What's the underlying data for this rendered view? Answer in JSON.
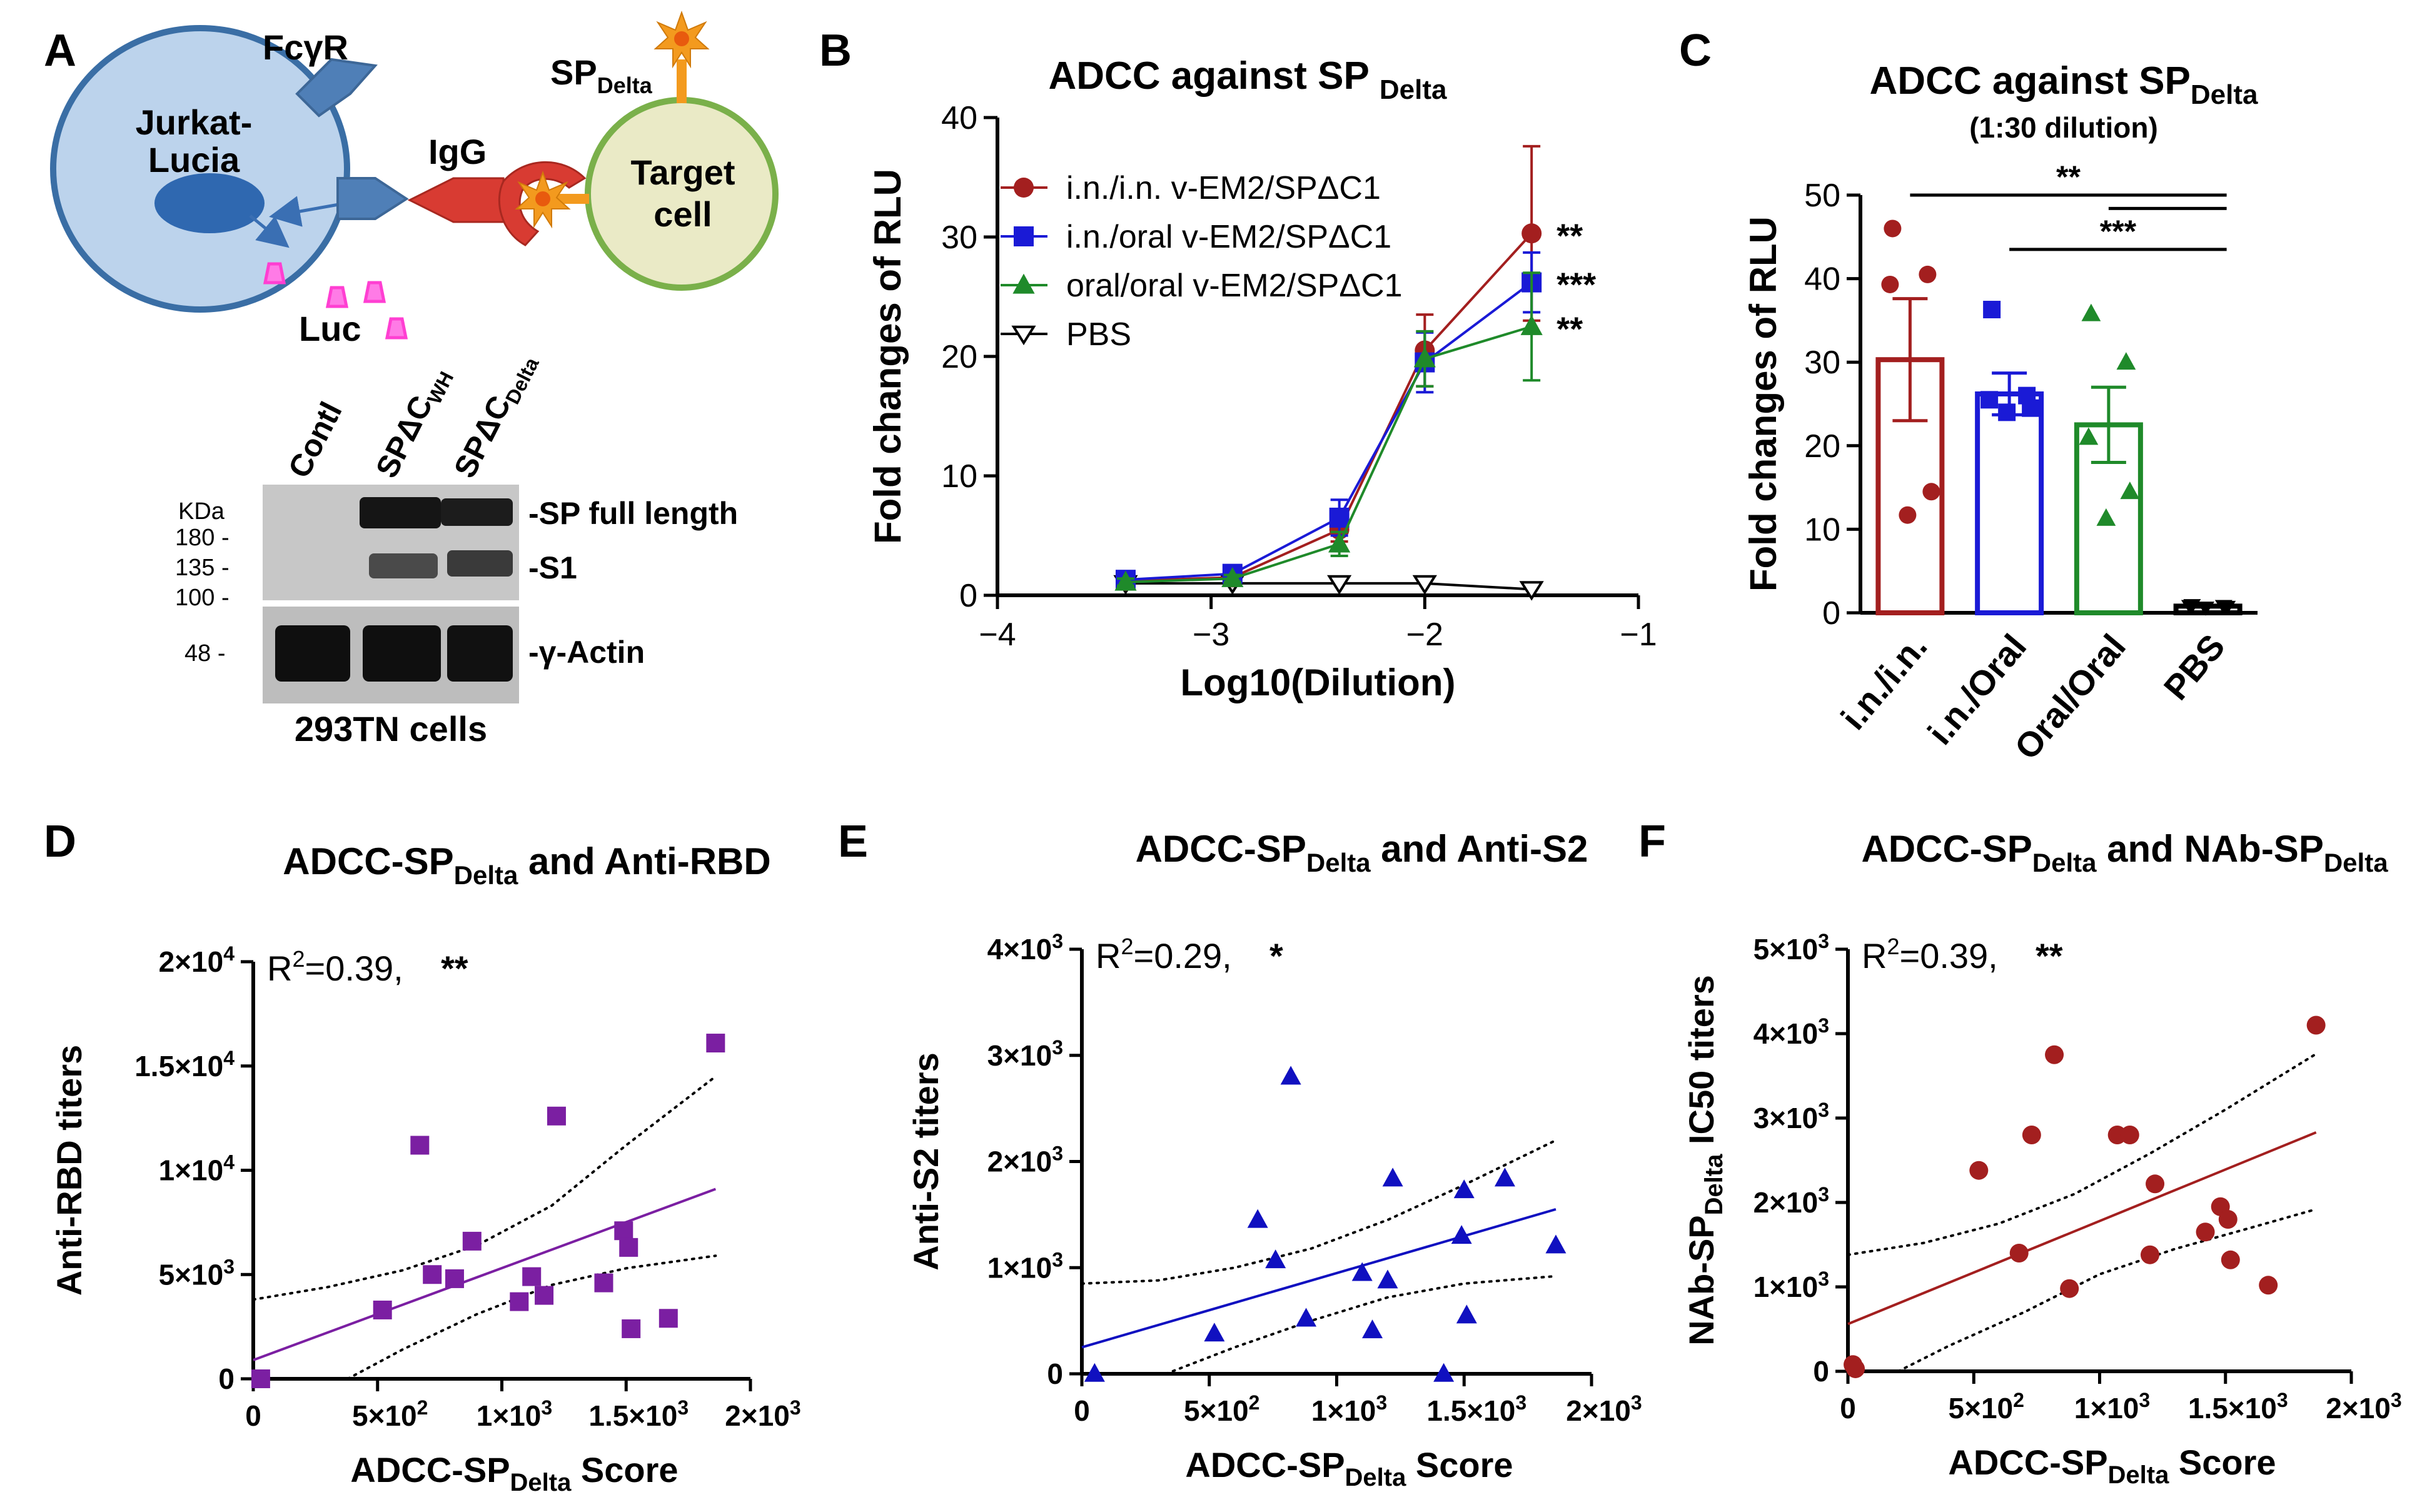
{
  "colors": {
    "red": "#a31f1f",
    "blue": "#1a1ad6",
    "green": "#1f8a2a",
    "purple": "#7b1fa2",
    "navy": "#1010c0",
    "cell_fill": "#bcd3ec",
    "target_fill": "#eaeac6",
    "orange": "#f39a1e",
    "pink": "#ff3fd2"
  },
  "panel_a": {
    "letter": "A",
    "fcgr": "FcγR",
    "cell_name_1": "Jurkat-",
    "cell_name_2": "Lucia",
    "igg": "IgG",
    "sp": "SP",
    "sp_sub": "Delta",
    "target_1": "Target",
    "target_2": "cell",
    "luc": "Luc",
    "blot": {
      "lanes": [
        "Contl",
        "SPΔC",
        "SPΔC"
      ],
      "lane_subs": [
        "",
        "WH",
        "Delta"
      ],
      "kda": "KDa",
      "markers": [
        "180 -",
        "135 -",
        "100 -",
        "48 -"
      ],
      "band_labels": [
        "-SP full length",
        "-S1",
        "-γ-Actin"
      ],
      "cell_line": "293TN cells"
    }
  },
  "chart_data": [
    {
      "panel": "B",
      "type": "line",
      "title": "ADCC against SP",
      "title_sub": "Delta",
      "xlabel": "Log10(Dilution)",
      "ylabel": "Fold changes of RLU",
      "xlim": [
        -4,
        -1
      ],
      "ylim": [
        0,
        40
      ],
      "xticks": [
        -4,
        -3,
        -2,
        -1
      ],
      "xtick_labels": [
        "−4",
        "−3",
        "−2",
        "−1"
      ],
      "yticks": [
        0,
        10,
        20,
        30,
        40
      ],
      "x": [
        -3.4,
        -2.9,
        -2.4,
        -2.0,
        -1.5
      ],
      "series": [
        {
          "name": "i.n./i.n. v-EM2/SPΔC1",
          "color_key": "red",
          "marker": "circle",
          "values": [
            1.2,
            1.5,
            5.5,
            20.5,
            30.3
          ],
          "err": [
            0.3,
            0.4,
            1.0,
            3.0,
            7.3
          ],
          "sig": "**"
        },
        {
          "name": "i.n./oral v-EM2/SPΔC1",
          "color_key": "blue",
          "marker": "square",
          "values": [
            1.3,
            1.8,
            6.5,
            19.5,
            26.2
          ],
          "err": [
            0.3,
            0.4,
            1.5,
            2.5,
            2.5
          ],
          "sig": "***"
        },
        {
          "name": "oral/oral v-EM2/SPΔC1",
          "color_key": "green",
          "marker": "triangle",
          "values": [
            1.1,
            1.4,
            4.3,
            19.8,
            22.5
          ],
          "err": [
            0.3,
            0.3,
            1.0,
            2.3,
            4.5
          ],
          "sig": "**"
        },
        {
          "name": "PBS",
          "color_key": "black",
          "marker": "triangle-down-open",
          "values": [
            1.0,
            1.0,
            1.0,
            1.0,
            0.5
          ],
          "err": [
            0,
            0,
            0,
            0,
            0
          ],
          "sig": ""
        }
      ]
    },
    {
      "panel": "C",
      "type": "bar",
      "title": "ADCC against SP",
      "title_sub": "Delta",
      "subtitle": "(1:30 dilution)",
      "ylabel": "Fold changes of RLU",
      "ylim": [
        0,
        50
      ],
      "yticks": [
        0,
        10,
        20,
        30,
        40,
        50
      ],
      "categories": [
        "i.n./i.n.",
        "i.n./Oral",
        "Oral/Oral",
        "PBS"
      ],
      "values": [
        30.3,
        26.2,
        22.5,
        0.8
      ],
      "sem": [
        7.3,
        2.5,
        4.5,
        0
      ],
      "points": [
        [
          46,
          40.5,
          39.3,
          14.5,
          11.7
        ],
        [
          36.3,
          26,
          25.5,
          24.5,
          24
        ],
        [
          35.8,
          30,
          21,
          14.5,
          11.3
        ],
        [
          0.9,
          0.8,
          0.8,
          0.7,
          0.6
        ]
      ],
      "markers": [
        "circle",
        "square",
        "triangle",
        "triangle-down"
      ],
      "color_keys": [
        "red",
        "blue",
        "green",
        "black"
      ],
      "comparisons": [
        {
          "from": 0,
          "to": 3,
          "label": "**",
          "level": 50
        },
        {
          "from": 1,
          "to": 3,
          "label": "***",
          "level": 43.5
        },
        {
          "from": 2,
          "to": 3,
          "label": "",
          "level": 48.4
        }
      ]
    },
    {
      "panel": "D",
      "type": "scatter",
      "title_pre": "ADCC-SP",
      "title_sub": "Delta",
      "title_post": " and Anti-RBD",
      "xlabel": "ADCC-SP",
      "xlabel_sub": "Delta",
      "xlabel_post": " Score",
      "ylabel": "Anti-RBD titers",
      "annotation": "R",
      "annotation_sup": "2",
      "annotation_value": "=0.39,",
      "annotation_sig": "**",
      "xlim": [
        0,
        2000
      ],
      "ylim": [
        0,
        20000
      ],
      "xticks": [
        0,
        500,
        1000,
        1500,
        2000
      ],
      "xtick_labels": [
        "0",
        "5×10",
        "1×10",
        "1.5×10",
        "2×10"
      ],
      "xtick_sups": [
        "",
        "2",
        "3",
        "3",
        "3"
      ],
      "yticks": [
        0,
        5000,
        10000,
        15000,
        20000
      ],
      "ytick_labels": [
        "0",
        "5×10",
        "1×10",
        "1.5×10",
        "2×10"
      ],
      "ytick_sups": [
        "",
        "3",
        "4",
        "4",
        "4"
      ],
      "marker": "square",
      "color_key": "purple",
      "x": [
        30,
        520,
        670,
        720,
        810,
        880,
        1070,
        1120,
        1170,
        1220,
        1410,
        1490,
        1510,
        1520,
        1670,
        1860
      ],
      "y": [
        0,
        3300,
        11200,
        5000,
        4800,
        6600,
        3700,
        4900,
        4000,
        12600,
        4600,
        7100,
        6300,
        2400,
        2900,
        16100
      ],
      "fit": {
        "x": [
          0,
          1860
        ],
        "y": [
          900,
          9100
        ]
      },
      "ci_upper": {
        "x": [
          0,
          300,
          600,
          900,
          1200,
          1500,
          1860
        ],
        "y": [
          3800,
          4400,
          5200,
          6400,
          8300,
          11200,
          14500
        ]
      },
      "ci_lower": {
        "x": [
          380,
          600,
          900,
          1200,
          1500,
          1860
        ],
        "y": [
          0,
          1400,
          3100,
          4500,
          5300,
          5900
        ]
      }
    },
    {
      "panel": "E",
      "type": "scatter",
      "title_pre": "ADCC-SP",
      "title_sub": "Delta",
      "title_post": " and Anti-S2",
      "xlabel": "ADCC-SP",
      "xlabel_sub": "Delta",
      "xlabel_post": " Score",
      "ylabel": "Anti-S2 titers",
      "annotation": "R",
      "annotation_sup": "2",
      "annotation_value": "=0.29,",
      "annotation_sig": "*",
      "xlim": [
        0,
        2000
      ],
      "ylim": [
        0,
        4000
      ],
      "xticks": [
        0,
        500,
        1000,
        1500,
        2000
      ],
      "xtick_labels": [
        "0",
        "5×10",
        "1×10",
        "1.5×10",
        "2×10"
      ],
      "xtick_sups": [
        "",
        "2",
        "3",
        "3",
        "3"
      ],
      "yticks": [
        0,
        1000,
        2000,
        3000,
        4000
      ],
      "ytick_labels": [
        "0",
        "1×10",
        "2×10",
        "3×10",
        "4×10"
      ],
      "ytick_sups": [
        "",
        "3",
        "3",
        "3",
        "3"
      ],
      "marker": "triangle",
      "color_key": "navy",
      "x": [
        50,
        520,
        690,
        760,
        820,
        880,
        1100,
        1140,
        1200,
        1220,
        1420,
        1490,
        1500,
        1510,
        1660,
        1860
      ],
      "y": [
        0,
        380,
        1450,
        1070,
        2800,
        520,
        950,
        410,
        880,
        1840,
        0,
        1300,
        1730,
        550,
        1840,
        1210
      ],
      "fit": {
        "x": [
          0,
          1860
        ],
        "y": [
          250,
          1550
        ]
      },
      "ci_upper": {
        "x": [
          0,
          300,
          600,
          900,
          1200,
          1500,
          1860
        ],
        "y": [
          850,
          880,
          1000,
          1180,
          1450,
          1780,
          2200
        ]
      },
      "ci_lower": {
        "x": [
          330,
          600,
          900,
          1200,
          1500,
          1860
        ],
        "y": [
          0,
          250,
          500,
          720,
          850,
          920
        ]
      }
    },
    {
      "panel": "F",
      "type": "scatter",
      "title_pre": "ADCC-SP",
      "title_sub": "Delta",
      "title_mid": " and NAb-SP",
      "title_sub2": "Delta",
      "xlabel": "ADCC-SP",
      "xlabel_sub": "Delta",
      "xlabel_post": " Score",
      "ylabel_pre": "NAb-SP",
      "ylabel_sub": "Delta",
      "ylabel_post": " IC50 titers",
      "annotation": "R",
      "annotation_sup": "2",
      "annotation_value": "=0.39,",
      "annotation_sig": "**",
      "xlim": [
        0,
        2000
      ],
      "ylim": [
        0,
        5000
      ],
      "xticks": [
        0,
        500,
        1000,
        1500,
        2000
      ],
      "xtick_labels": [
        "0",
        "5×10",
        "1×10",
        "1.5×10",
        "2×10"
      ],
      "xtick_sups": [
        "",
        "2",
        "3",
        "3",
        "3"
      ],
      "yticks": [
        0,
        1000,
        2000,
        3000,
        4000,
        5000
      ],
      "ytick_labels": [
        "0",
        "1×10",
        "2×10",
        "3×10",
        "4×10",
        "5×10"
      ],
      "ytick_sups": [
        "",
        "3",
        "3",
        "3",
        "3",
        "3"
      ],
      "marker": "circle",
      "color_key": "red",
      "x": [
        20,
        30,
        520,
        680,
        730,
        820,
        880,
        1070,
        1120,
        1200,
        1220,
        1420,
        1480,
        1510,
        1520,
        1670,
        1860
      ],
      "y": [
        80,
        30,
        2380,
        1400,
        2800,
        3750,
        980,
        2800,
        2800,
        1380,
        2220,
        1650,
        1950,
        1800,
        1320,
        1020,
        4100
      ],
      "fit": {
        "x": [
          0,
          1860
        ],
        "y": [
          560,
          2830
        ]
      },
      "ci_upper": {
        "x": [
          0,
          300,
          600,
          900,
          1200,
          1500,
          1860
        ],
        "y": [
          1380,
          1520,
          1750,
          2100,
          2580,
          3100,
          3760
        ]
      },
      "ci_lower": {
        "x": [
          200,
          400,
          700,
          1000,
          1300,
          1600,
          1860
        ],
        "y": [
          0,
          300,
          700,
          1150,
          1450,
          1700,
          1920
        ]
      }
    }
  ]
}
